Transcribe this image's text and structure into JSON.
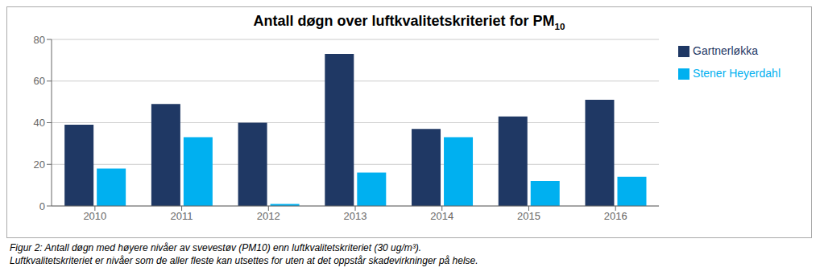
{
  "chart_data": {
    "type": "bar",
    "title": "Antall døgn over luftkvalitetskriteriet for PM10",
    "categories": [
      "2010",
      "2011",
      "2012",
      "2013",
      "2014",
      "2015",
      "2016"
    ],
    "series": [
      {
        "name": "Gartnerløkka",
        "color": "#1F3864",
        "values": [
          39,
          49,
          40,
          73,
          37,
          43,
          51
        ]
      },
      {
        "name": "Stener Heyerdahl",
        "color": "#00B0F0",
        "values": [
          18,
          33,
          1,
          16,
          33,
          12,
          14
        ]
      }
    ],
    "ylim": [
      0,
      80
    ],
    "yticks": [
      0,
      20,
      40,
      60,
      80
    ],
    "grid": true,
    "legend": "right",
    "annotations": [
      "Figur 2: Antall døgn med høyere nivåer av svevestøv (PM10) enn luftkvalitetskriteriet (30 ug/m³).",
      "Luftkvalitetskriteriet er nivåer som de aller fleste kan utsettes for uten at det oppstår skadevirkninger på helse."
    ]
  }
}
